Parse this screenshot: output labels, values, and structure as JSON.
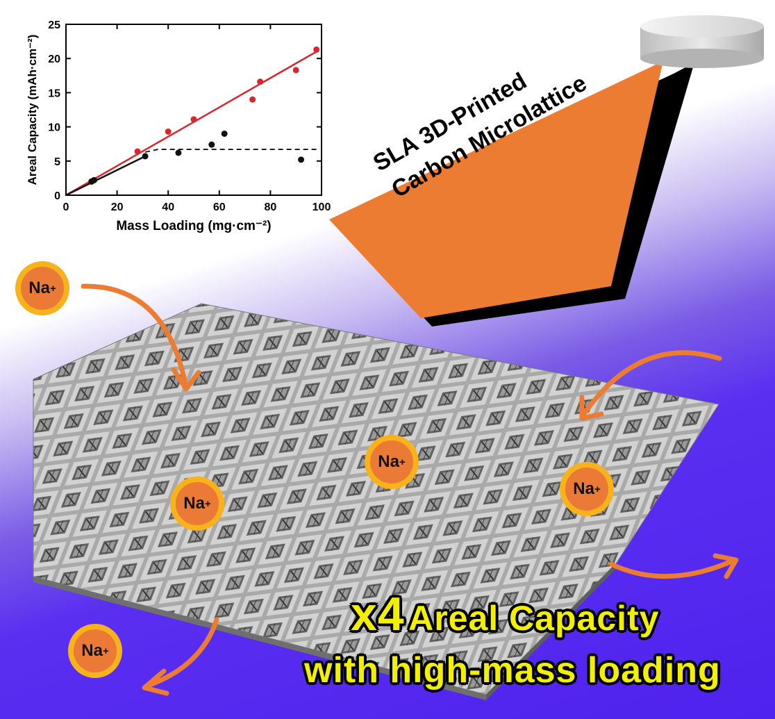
{
  "chart_data": {
    "type": "scatter",
    "xlabel": "Mass Loading (mg·cm⁻²)",
    "ylabel": "Areal Capacity (mAh·cm⁻²)",
    "xlim": [
      0,
      100
    ],
    "ylim": [
      0,
      25
    ],
    "x_ticks": [
      "0",
      "20",
      "40",
      "60",
      "80",
      "100"
    ],
    "y_ticks": [
      "0",
      "5",
      "10",
      "15",
      "20",
      "25"
    ],
    "series": [
      {
        "color": "#d9262c",
        "points": [
          [
            10,
            2.0
          ],
          [
            11,
            2.2
          ],
          [
            28,
            6.4
          ],
          [
            40,
            9.3
          ],
          [
            50,
            11.1
          ],
          [
            73,
            14.0
          ],
          [
            76,
            16.6
          ],
          [
            90,
            18.3
          ],
          [
            98,
            21.3
          ]
        ],
        "fit_line": [
          [
            0,
            0
          ],
          [
            98,
            21.0
          ]
        ]
      },
      {
        "color": "#111111",
        "points": [
          [
            10,
            2.0
          ],
          [
            11,
            2.2
          ],
          [
            31,
            5.7
          ],
          [
            44,
            6.2
          ],
          [
            57,
            7.4
          ],
          [
            62,
            9.0
          ],
          [
            92,
            5.2
          ]
        ],
        "fit_line": [
          [
            0,
            0
          ],
          [
            31,
            5.7
          ]
        ],
        "plateau_dashed": [
          [
            31,
            6.3
          ],
          [
            36,
            6.7
          ],
          [
            98,
            6.7
          ]
        ]
      }
    ],
    "grid": false
  },
  "arrow_label": {
    "line1": "SLA 3D-Printed",
    "line2": "Carbon Microlattice"
  },
  "ion_label": "Na",
  "ion_charge": "+",
  "banner": {
    "multiplier": "x4",
    "line1": "Areal Capacity",
    "line2": "with high-mass loading"
  },
  "colors": {
    "arrow": "#ec7c31",
    "ion_fill": "#ea7a35",
    "ion_ring": "#f7b21c",
    "banner_text": "#f2f000",
    "lattice": "#b9b9b9",
    "background_purple": "#4f22ee"
  }
}
